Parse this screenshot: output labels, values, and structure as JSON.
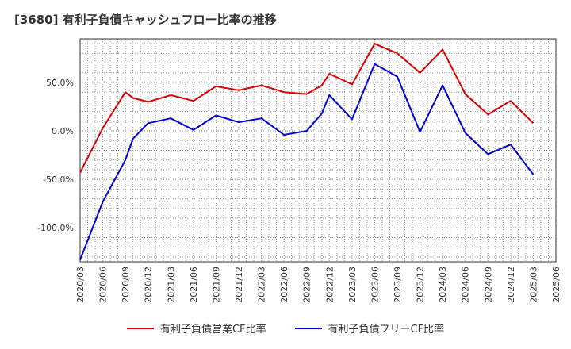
{
  "chart_data": {
    "type": "line",
    "title": "[3680]  有利子負債キャッシュフロー比率の推移",
    "x": [
      "2020/03",
      "2020/06",
      "2020/09",
      "2020/10",
      "2020/12",
      "2021/03",
      "2021/06",
      "2021/09",
      "2021/12",
      "2022/03",
      "2022/06",
      "2022/09",
      "2022/11",
      "2022/12",
      "2023/03",
      "2023/06",
      "2023/09",
      "2023/12",
      "2024/03",
      "2024/06",
      "2024/09",
      "2024/12",
      "2025/03"
    ],
    "x_ticks": [
      "2020/03",
      "2020/06",
      "2020/09",
      "2020/12",
      "2021/03",
      "2021/06",
      "2021/09",
      "2021/12",
      "2022/03",
      "2022/06",
      "2022/09",
      "2022/12",
      "2023/03",
      "2023/06",
      "2023/09",
      "2023/12",
      "2024/03",
      "2024/06",
      "2024/09",
      "2024/12",
      "2025/03",
      "2025/06"
    ],
    "y_ticks": [
      "50.0%",
      "0.0%",
      "-50.0%",
      "-100.0%"
    ],
    "y_tick_values": [
      50,
      0,
      -50,
      -100
    ],
    "ylim": [
      -135,
      95
    ],
    "grid": true,
    "legend_position": "bottom",
    "series": [
      {
        "name": "有利子負債営業CF比率",
        "color": "#dd0000",
        "values": [
          -43,
          3,
          40,
          34,
          30,
          37,
          31,
          46,
          42,
          47,
          40,
          38,
          47,
          59,
          48,
          90,
          80,
          60,
          84,
          38,
          17,
          31,
          8
        ]
      },
      {
        "name": "有利子負債フリーCF比率",
        "color": "#0000dd",
        "values": [
          -133,
          -73,
          -30,
          -8,
          8,
          13,
          1,
          16,
          9,
          13,
          -4,
          0,
          18,
          37,
          12,
          69,
          56,
          -1,
          47,
          -2,
          -24,
          -14,
          -45
        ]
      }
    ]
  }
}
